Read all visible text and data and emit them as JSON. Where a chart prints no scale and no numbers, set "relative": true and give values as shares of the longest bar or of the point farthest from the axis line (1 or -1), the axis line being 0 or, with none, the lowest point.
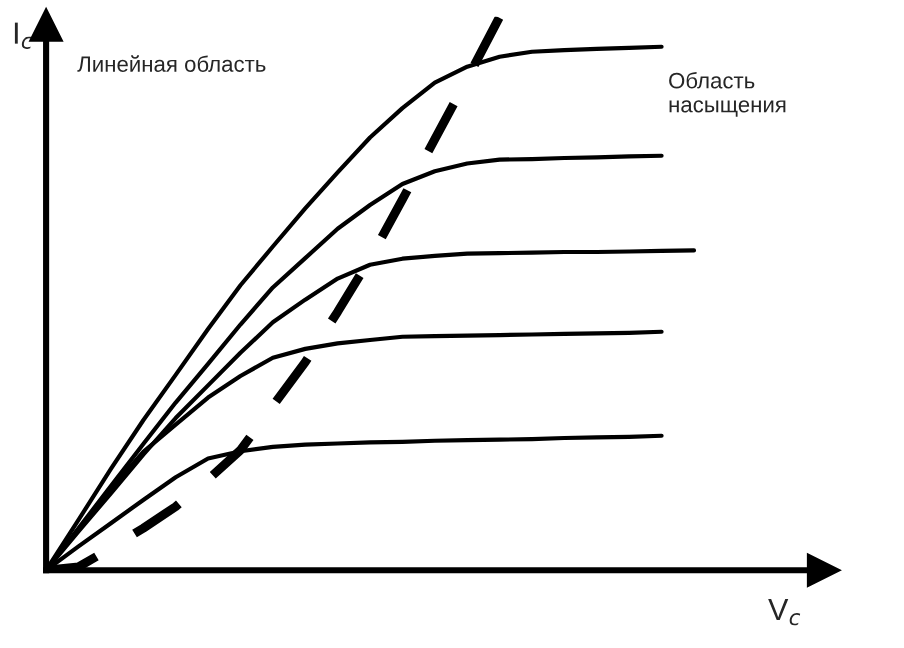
{
  "chart_data": {
    "type": "line",
    "relative": true,
    "xlabel": "V$_{c}$",
    "ylabel": "I$_{c}$",
    "legend": false,
    "marker": "none",
    "annotations": [
      "Линейная область",
      "Область\nнасыщения"
    ],
    "categories": [
      null,
      null,
      null,
      null,
      null,
      null,
      null,
      null,
      null,
      null,
      null,
      null,
      null,
      null,
      null,
      null,
      null,
      null,
      null,
      null,
      null
    ],
    "series": [
      {
        "color": "#000000",
        "values": [
          0,
          0.091,
          0.183,
          0.271,
          0.353,
          0.436,
          0.515,
          0.585,
          0.654,
          0.719,
          0.782,
          0.835,
          0.881,
          0.91,
          0.928,
          0.937,
          0.94,
          0.942,
          0.944,
          0.946,
          null
        ]
      },
      {
        "color": "#000000",
        "values": [
          0,
          0.076,
          0.152,
          0.228,
          0.303,
          0.373,
          0.444,
          0.511,
          0.564,
          0.617,
          0.66,
          0.698,
          0.721,
          0.735,
          0.742,
          0.743,
          0.745,
          0.746,
          0.748,
          0.749,
          null
        ]
      },
      {
        "color": "#000000",
        "values": [
          0,
          0.07,
          0.139,
          0.209,
          0.275,
          0.334,
          0.393,
          0.448,
          0.489,
          0.527,
          0.552,
          0.563,
          0.568,
          0.572,
          0.573,
          0.574,
          0.575,
          0.575,
          0.576,
          0.577,
          0.578
        ]
      },
      {
        "color": "#000000",
        "values": [
          0,
          0.074,
          0.147,
          0.214,
          0.263,
          0.312,
          0.351,
          0.384,
          0.4,
          0.41,
          0.416,
          0.422,
          0.423,
          0.424,
          0.425,
          0.426,
          0.427,
          0.428,
          0.429,
          0.431,
          null
        ]
      },
      {
        "color": "#000000",
        "values": [
          0,
          0.043,
          0.085,
          0.127,
          0.168,
          0.202,
          0.215,
          0.223,
          0.227,
          0.229,
          0.231,
          0.232,
          0.234,
          0.235,
          0.236,
          0.237,
          0.239,
          0.24,
          0.241,
          0.243,
          null
        ]
      },
      {
        "color": "#000000",
        "line_style": "dashed",
        "values": [
          0,
          0.006,
          0.04,
          0.076,
          0.115,
          0.164,
          0.217,
          0.297,
          0.376,
          0.467,
          0.563,
          0.67,
          0.779,
          0.888,
          1.0,
          null,
          null,
          null,
          null,
          null,
          null
        ]
      }
    ]
  }
}
